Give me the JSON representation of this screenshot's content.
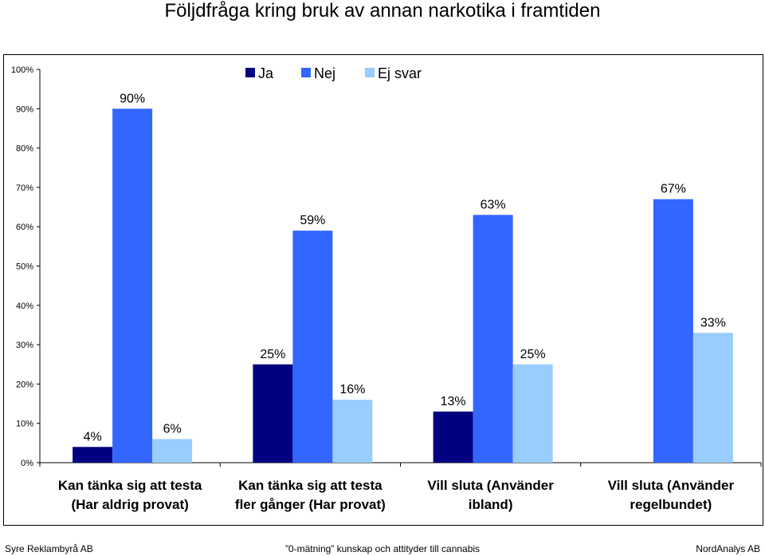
{
  "title": "Följdfråga kring bruk av annan narkotika i framtiden",
  "footer": {
    "left": "Syre Reklambyrå AB",
    "center": "”0-mätning” kunskap och attityder till cannabis",
    "right": "NordAnalys AB"
  },
  "chart_data": {
    "type": "bar",
    "title": "Följdfråga kring bruk av annan narkotika i framtiden",
    "categories": [
      [
        "Kan tänka sig att testa",
        "(Har aldrig provat)"
      ],
      [
        "Kan tänka sig att testa",
        "fler gånger (Har provat)"
      ],
      [
        "Vill sluta (Använder",
        "ibland)"
      ],
      [
        "Vill sluta (Använder",
        "regelbundet)"
      ]
    ],
    "series": [
      {
        "name": "Ja",
        "color": "#000080",
        "values": [
          4,
          25,
          13,
          null
        ],
        "labels": [
          "4%",
          "25%",
          "13%",
          ""
        ]
      },
      {
        "name": "Nej",
        "color": "#3366FF",
        "values": [
          90,
          59,
          63,
          67
        ],
        "labels": [
          "90%",
          "59%",
          "63%",
          "67%"
        ]
      },
      {
        "name": "Ej svar",
        "color": "#99CCFF",
        "values": [
          6,
          16,
          25,
          33
        ],
        "labels": [
          "6%",
          "16%",
          "25%",
          "33%"
        ]
      }
    ],
    "ylim": [
      0,
      100
    ],
    "yticks": [
      "0%",
      "10%",
      "20%",
      "30%",
      "40%",
      "50%",
      "60%",
      "70%",
      "80%",
      "90%",
      "100%"
    ],
    "legend": "top-center",
    "grid": false
  }
}
